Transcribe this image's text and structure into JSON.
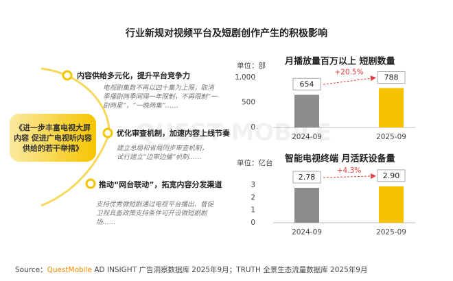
{
  "title": "行业新规对视频平台及短剧创作产生的积极影响",
  "policy": "《进一步丰富电视大屏内容 促进广电视听内容供给的若干举措》",
  "items": [
    {
      "heading": "内容供给多元化，提升平台竞争力",
      "desc": "电视剧集数不再以四十集为上限，取消季播剧两季间隔一年限制，不再限制“一剧两星”，“一晚两集”……"
    },
    {
      "heading": "优化审查机制，加速内容上线节奏",
      "desc": "建立总局和省局同步审查机制，试行建立“边审边播”机制……"
    },
    {
      "heading": "推动“网台联动”，拓宽内容分发渠道",
      "desc": "支持优秀微短剧通过电视平台播出、督促卫视具备政策支持条件可开设微短剧剧场……"
    }
  ],
  "watermark": "QUEST MOBILE",
  "source": {
    "prefix": "Source：",
    "brand": "QuestMobile",
    "rest": " AD INSIGHT 广告洞察数据库 2025年9月；TRUTH 全景生态流量数据库 2025年9月"
  },
  "chart_data": [
    {
      "type": "bar",
      "title": "月播放量百万以上 短剧数量",
      "unit": "单位：部",
      "categories": [
        "2024-09",
        "2025-09"
      ],
      "values": [
        654,
        788
      ],
      "colors": [
        "#8c8c8c",
        "#f7c200"
      ],
      "ylim": [
        0,
        1000
      ],
      "yticks": [
        0,
        500,
        {
          "value": 1000,
          "label": "1,000"
        }
      ],
      "annotation": "+20.5%"
    },
    {
      "type": "bar",
      "title": "智能电视终端 月活跃设备量",
      "unit": "单位：亿台",
      "categories": [
        "2024-09",
        "2025-09"
      ],
      "values": [
        2.78,
        2.9
      ],
      "value_labels": [
        "2.78",
        "2.90"
      ],
      "colors": [
        "#8c8c8c",
        "#f7c200"
      ],
      "ylim": [
        0,
        3
      ],
      "yticks": [
        0,
        1,
        2,
        3
      ],
      "annotation": "+4.3%"
    }
  ]
}
